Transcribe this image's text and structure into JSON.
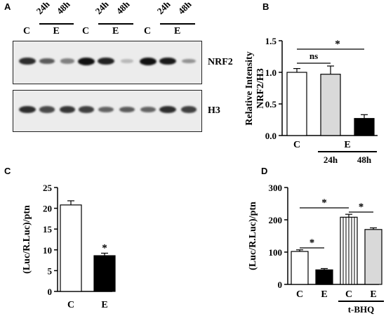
{
  "panel_a": {
    "label": "A",
    "lanes": [
      {
        "group": "C"
      },
      {
        "group": "E",
        "time": "24h"
      },
      {
        "group": "E",
        "time": "48h"
      },
      {
        "group": "C"
      },
      {
        "group": "E",
        "time": "24h"
      },
      {
        "group": "E",
        "time": "48h"
      },
      {
        "group": "C"
      },
      {
        "group": "E",
        "time": "24h"
      },
      {
        "group": "E",
        "time": "48h"
      }
    ],
    "lane_labels": [
      "C",
      "E",
      "C",
      "E",
      "C",
      "E"
    ],
    "time_labels": [
      "24h",
      "48h",
      "24h",
      "48h",
      "24h",
      "48h"
    ],
    "blots": [
      {
        "name": "NRF2",
        "band_intensity": [
          0.85,
          0.6,
          0.4,
          1.0,
          0.9,
          0.1,
          1.0,
          0.95,
          0.3
        ]
      },
      {
        "name": "H3",
        "band_intensity": [
          0.85,
          0.7,
          0.8,
          0.75,
          0.55,
          0.6,
          0.55,
          0.85,
          0.75
        ]
      }
    ]
  },
  "chart_data": [
    {
      "panel": "B",
      "type": "bar",
      "categories": [
        "C",
        "E 24h",
        "E 48h"
      ],
      "values": [
        1.0,
        0.97,
        0.27
      ],
      "errors": [
        0.06,
        0.13,
        0.06
      ],
      "bar_colors": [
        "#ffffff",
        "#d9d9d9",
        "#000000"
      ],
      "ylabel": "Relative Intensity NRF2/H3",
      "ylabel_lines": [
        "Relative Intensity",
        "NRF2/H3"
      ],
      "ylim": [
        0,
        1.5
      ],
      "yticks": [
        "0.0",
        "0.5",
        "1.0",
        "1.5"
      ],
      "x_labels": [
        "C",
        "E"
      ],
      "sub_labels": [
        "24h",
        "48h"
      ],
      "annotations": [
        {
          "text": "ns",
          "between": [
            "C",
            "E 24h"
          ]
        },
        {
          "text": "*",
          "between": [
            "C",
            "E 48h"
          ]
        }
      ]
    },
    {
      "panel": "C",
      "type": "bar",
      "categories": [
        "C",
        "E"
      ],
      "values": [
        20.8,
        8.6
      ],
      "errors": [
        1.0,
        0.6
      ],
      "bar_colors": [
        "#ffffff",
        "#000000"
      ],
      "ylabel": "(Luc/R.Luc)/ptn",
      "ylim": [
        0,
        25
      ],
      "yticks": [
        "0",
        "5",
        "10",
        "15",
        "20",
        "25"
      ],
      "x_labels": [
        "C",
        "E"
      ],
      "annotations": [
        {
          "text": "*",
          "over": "E"
        }
      ]
    },
    {
      "panel": "D",
      "type": "bar",
      "categories": [
        "C",
        "E",
        "C t-BHQ",
        "E t-BHQ"
      ],
      "values": [
        102,
        45,
        208,
        170
      ],
      "errors": [
        5,
        4,
        9,
        5
      ],
      "bar_colors": [
        "#ffffff",
        "#000000",
        "striped",
        "#d9d9d9"
      ],
      "ylabel": "(Luc/R.Luc)/ptn",
      "ylim": [
        0,
        300
      ],
      "yticks": [
        "0",
        "100",
        "200",
        "300"
      ],
      "x_labels": [
        "C",
        "E",
        "C",
        "E"
      ],
      "group_label": "t-BHQ",
      "annotations": [
        {
          "text": "*",
          "between": [
            "C",
            "E"
          ]
        },
        {
          "text": "*",
          "between": [
            "C",
            "C t-BHQ"
          ]
        },
        {
          "text": "*",
          "between": [
            "C t-BHQ",
            "E t-BHQ"
          ]
        }
      ]
    }
  ]
}
